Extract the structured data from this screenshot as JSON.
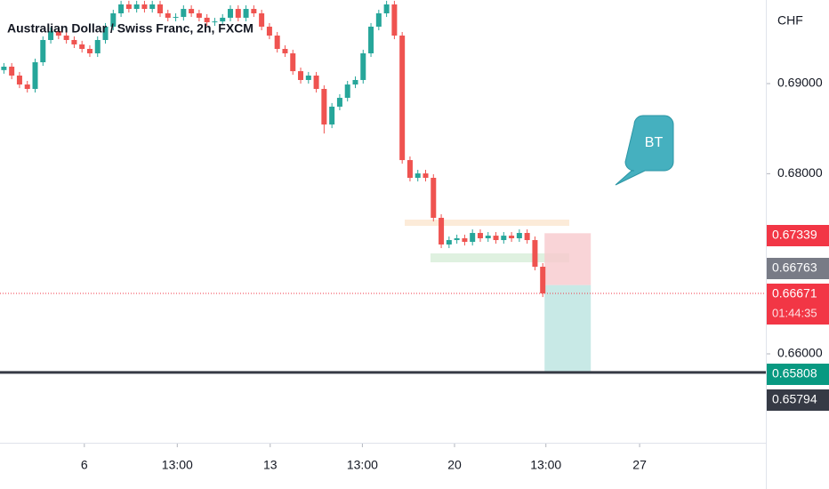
{
  "chart_data": {
    "type": "candlestick",
    "title": "Australian Dollar / Swiss Franc, 2h, FXCM",
    "currency": "CHF",
    "up_color": "#26a69a",
    "down_color": "#ef5350",
    "x": [
      0,
      1,
      2,
      3,
      4,
      5,
      6,
      7,
      8,
      9,
      10,
      11,
      12,
      13,
      14,
      15,
      16,
      17,
      18,
      19,
      20,
      21,
      22,
      23,
      24,
      25,
      26,
      27,
      28,
      29,
      30,
      31,
      32,
      33,
      34,
      35,
      36,
      37,
      38,
      39,
      40,
      41,
      42,
      43,
      44,
      45,
      46,
      47,
      48,
      49,
      50,
      51,
      52,
      53,
      54,
      55,
      56,
      57,
      58,
      59,
      60,
      61,
      62,
      63,
      64,
      65,
      66,
      67,
      68,
      69
    ],
    "open": [
      0.6915,
      0.69188,
      0.69089,
      0.6899,
      0.68941,
      0.69237,
      0.69484,
      0.69583,
      0.69533,
      0.69484,
      0.69435,
      0.69385,
      0.69336,
      0.69484,
      0.69632,
      0.6978,
      0.69879,
      0.69829,
      0.69879,
      0.69829,
      0.69879,
      0.6978,
      0.69731,
      0.6974,
      0.69829,
      0.6978,
      0.69731,
      0.69681,
      0.6969,
      0.69731,
      0.69829,
      0.69731,
      0.69829,
      0.6978,
      0.69632,
      0.69533,
      0.69385,
      0.69336,
      0.69138,
      0.6904,
      0.69089,
      0.68941,
      0.68546,
      0.68744,
      0.68842,
      0.6899,
      0.6904,
      0.69336,
      0.69632,
      0.6978,
      0.69879,
      0.69533,
      0.68151,
      0.67954,
      0.68003,
      0.67954,
      0.6751,
      0.67214,
      0.67263,
      0.67283,
      0.67243,
      0.67342,
      0.67283,
      0.67312,
      0.67263,
      0.67312,
      0.67283,
      0.67342,
      0.67263,
      0.66967
    ],
    "high": [
      0.69228,
      0.69228,
      0.69129,
      0.6903,
      0.69277,
      0.69524,
      0.69623,
      0.69623,
      0.69573,
      0.69524,
      0.69475,
      0.69425,
      0.69524,
      0.69672,
      0.6982,
      0.69919,
      0.69919,
      0.69919,
      0.69919,
      0.69919,
      0.69919,
      0.6982,
      0.6978,
      0.69869,
      0.69869,
      0.6982,
      0.69771,
      0.6973,
      0.69771,
      0.69869,
      0.69869,
      0.69869,
      0.69869,
      0.6982,
      0.69672,
      0.69573,
      0.69425,
      0.69376,
      0.69178,
      0.69129,
      0.69129,
      0.68981,
      0.68784,
      0.68882,
      0.6903,
      0.6908,
      0.69376,
      0.69672,
      0.6982,
      0.69919,
      0.69919,
      0.69573,
      0.68191,
      0.68043,
      0.68043,
      0.67994,
      0.6755,
      0.67303,
      0.67323,
      0.67323,
      0.67382,
      0.67382,
      0.67352,
      0.67352,
      0.67352,
      0.67352,
      0.67382,
      0.67382,
      0.67303,
      0.67007
    ],
    "low": [
      0.6911,
      0.69049,
      0.6895,
      0.68901,
      0.68901,
      0.69197,
      0.69444,
      0.69493,
      0.69444,
      0.69395,
      0.69345,
      0.69296,
      0.69296,
      0.69444,
      0.69592,
      0.6974,
      0.69789,
      0.69789,
      0.69789,
      0.69789,
      0.6974,
      0.69691,
      0.69691,
      0.697,
      0.6974,
      0.69691,
      0.69641,
      0.69641,
      0.6965,
      0.69691,
      0.69691,
      0.69691,
      0.6974,
      0.69592,
      0.69493,
      0.69345,
      0.69296,
      0.69098,
      0.69,
      0.69,
      0.68901,
      0.68446,
      0.68506,
      0.68704,
      0.68802,
      0.6895,
      0.69,
      0.69296,
      0.69592,
      0.6974,
      0.69493,
      0.68111,
      0.67914,
      0.67914,
      0.67914,
      0.6747,
      0.67174,
      0.67174,
      0.67223,
      0.67203,
      0.67203,
      0.67243,
      0.67243,
      0.67223,
      0.67223,
      0.67243,
      0.67243,
      0.67223,
      0.66927,
      0.66631
    ],
    "close": [
      0.69188,
      0.69089,
      0.6899,
      0.68941,
      0.69237,
      0.69484,
      0.69583,
      0.69533,
      0.69484,
      0.69435,
      0.69385,
      0.69336,
      0.69484,
      0.69632,
      0.6978,
      0.69879,
      0.69829,
      0.69879,
      0.69829,
      0.69879,
      0.6978,
      0.69731,
      0.6974,
      0.69829,
      0.6978,
      0.69731,
      0.69681,
      0.6969,
      0.69731,
      0.69829,
      0.69731,
      0.69829,
      0.6978,
      0.69632,
      0.69533,
      0.69385,
      0.69336,
      0.69138,
      0.6904,
      0.69089,
      0.68941,
      0.68546,
      0.68744,
      0.68842,
      0.6899,
      0.6904,
      0.69336,
      0.69632,
      0.6978,
      0.69879,
      0.69533,
      0.68151,
      0.67954,
      0.68003,
      0.67954,
      0.6751,
      0.67214,
      0.67263,
      0.67283,
      0.67243,
      0.67342,
      0.67283,
      0.67312,
      0.67263,
      0.67312,
      0.67283,
      0.67342,
      0.67263,
      0.66967,
      0.66671
    ],
    "xlim": [
      -0.5,
      97.45
    ],
    "xticks": [
      {
        "value": 10.3,
        "label": "6"
      },
      {
        "value": 22.2,
        "label": "13:00"
      },
      {
        "value": 34.1,
        "label": "13"
      },
      {
        "value": 45.9,
        "label": "13:00"
      },
      {
        "value": 57.7,
        "label": "20"
      },
      {
        "value": 69.4,
        "label": "13:00"
      },
      {
        "value": 81.4,
        "label": "27"
      }
    ],
    "ylim": [
      0.65013,
      0.69928
    ],
    "yticks": [
      {
        "value": 0.66,
        "label": "0.66000"
      },
      {
        "value": 0.68,
        "label": "0.68000"
      },
      {
        "value": 0.69,
        "label": "0.69000"
      }
    ],
    "stop_loss": 0.67339,
    "entry": 0.66763,
    "last_price": 0.66671,
    "countdown": "01:44:35",
    "take_profit": 0.65808,
    "horizontal_line": 0.65794,
    "annotation": "BT"
  }
}
